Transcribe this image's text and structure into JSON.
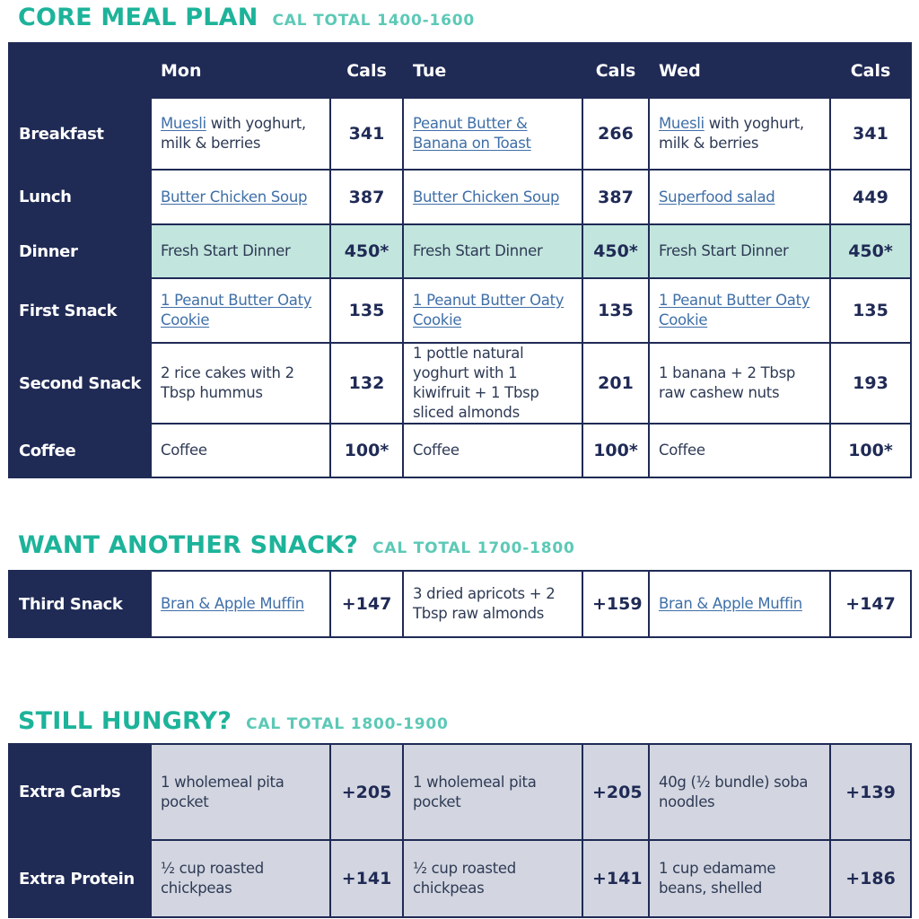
{
  "core": {
    "title": "CORE MEAL PLAN",
    "cal_total": "CAL TOTAL 1400-1600",
    "headers": {
      "label": "",
      "day1": "Mon",
      "cal1": "Cals",
      "day2": "Tue",
      "cal2": "Cals",
      "day3": "Wed",
      "cal3": "Cals"
    },
    "rows": [
      {
        "label": "Breakfast",
        "mon": {
          "link": "Muesli",
          "text": " with yoghurt, milk & berries",
          "cal": "341"
        },
        "tue": {
          "link": "Peanut Butter & Banana on Toast",
          "text": "",
          "cal": "266"
        },
        "wed": {
          "link": "Muesli",
          "text": " with yoghurt, milk & berries",
          "cal": "341"
        }
      },
      {
        "label": "Lunch",
        "mon": {
          "link": "Butter Chicken Soup",
          "text": "",
          "cal": "387"
        },
        "tue": {
          "link": "Butter Chicken Soup",
          "text": "",
          "cal": "387"
        },
        "wed": {
          "link": "Superfood salad",
          "text": "",
          "cal": "449"
        }
      },
      {
        "label": "Dinner",
        "mon": {
          "link": "",
          "text": "Fresh Start Dinner",
          "cal": "450*"
        },
        "tue": {
          "link": "",
          "text": "Fresh Start Dinner",
          "cal": "450*"
        },
        "wed": {
          "link": "",
          "text": "Fresh Start Dinner",
          "cal": "450*"
        }
      },
      {
        "label": "First Snack",
        "mon": {
          "link": "1 Peanut Butter Oaty Cookie",
          "text": "",
          "cal": "135"
        },
        "tue": {
          "link": "1 Peanut Butter Oaty Cookie",
          "text": "",
          "cal": "135"
        },
        "wed": {
          "link": "1 Peanut Butter Oaty Cookie",
          "text": "",
          "cal": "135"
        }
      },
      {
        "label": "Second Snack",
        "mon": {
          "link": "",
          "text": "2 rice cakes with 2 Tbsp hummus",
          "cal": "132"
        },
        "tue": {
          "link": "",
          "text": "1 pottle natural yoghurt with 1 kiwifruit + 1 Tbsp sliced almonds",
          "cal": "201"
        },
        "wed": {
          "link": "",
          "text": "1 banana + 2 Tbsp raw cashew nuts",
          "cal": "193"
        }
      },
      {
        "label": "Coffee",
        "mon": {
          "link": "",
          "text": "Coffee",
          "cal": "100*"
        },
        "tue": {
          "link": "",
          "text": "Coffee",
          "cal": "100*"
        },
        "wed": {
          "link": "",
          "text": "Coffee",
          "cal": "100*"
        }
      }
    ]
  },
  "snack": {
    "title": "WANT ANOTHER SNACK?",
    "cal_total": "CAL TOTAL 1700-1800",
    "rows": [
      {
        "label": "Third Snack",
        "mon": {
          "link": "Bran & Apple Muffin",
          "text": "",
          "cal": "+147"
        },
        "tue": {
          "link": "",
          "text": "3 dried apricots + 2 Tbsp raw almonds",
          "cal": "+159"
        },
        "wed": {
          "link": "Bran & Apple Muffin",
          "text": "",
          "cal": "+147"
        }
      }
    ]
  },
  "hungry": {
    "title": "STILL HUNGRY?",
    "cal_total": "CAL TOTAL 1800-1900",
    "rows": [
      {
        "label": "Extra Carbs",
        "mon": {
          "link": "",
          "text": "1 wholemeal pita pocket",
          "cal": "+205"
        },
        "tue": {
          "link": "",
          "text": "1 wholemeal pita pocket",
          "cal": "+205"
        },
        "wed": {
          "link": "",
          "text": "40g (½ bundle) soba noodles",
          "cal": "+139"
        }
      },
      {
        "label": "Extra Protein",
        "mon": {
          "link": "",
          "text": "½ cup roasted chickpeas",
          "cal": "+141"
        },
        "tue": {
          "link": "",
          "text": "½ cup roasted chickpeas",
          "cal": "+141"
        },
        "wed": {
          "link": "",
          "text": "1 cup edamame beans, shelled",
          "cal": "+186"
        }
      }
    ]
  },
  "colors": {
    "navy": "#1f2a55",
    "teal_heading": "#1db39a",
    "teal_sub": "#5cc9b6",
    "dinner_bg": "#c2e5dd",
    "grey_bg": "#d3d6e0",
    "link": "#3f6fa8"
  }
}
